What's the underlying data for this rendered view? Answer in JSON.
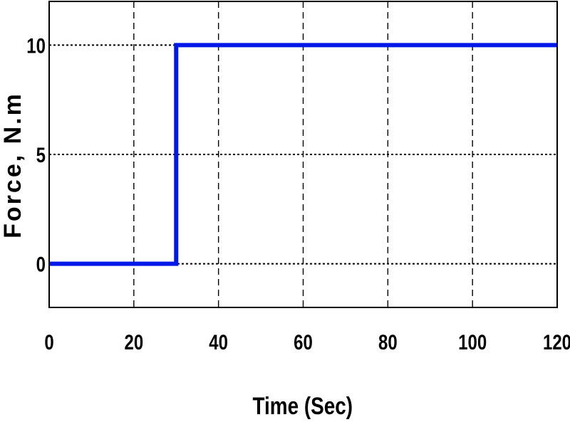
{
  "chart_data": {
    "type": "line",
    "title": "",
    "xlabel": "Time (Sec)",
    "ylabel": "Force, N.m",
    "xlim": [
      0,
      120
    ],
    "ylim": [
      -2,
      12
    ],
    "xticks": [
      0,
      20,
      40,
      60,
      80,
      100,
      120
    ],
    "xtick_labels": [
      "0",
      "20",
      "40",
      "60",
      "80",
      "100",
      "120"
    ],
    "yticks": [
      0,
      5,
      10
    ],
    "ytick_labels": [
      "0",
      "5",
      "10"
    ],
    "grid": true,
    "legend": "none",
    "series": [
      {
        "color": "#0018e8",
        "x": [
          0,
          30,
          30,
          120
        ],
        "y": [
          0,
          0,
          10,
          10
        ]
      }
    ]
  }
}
